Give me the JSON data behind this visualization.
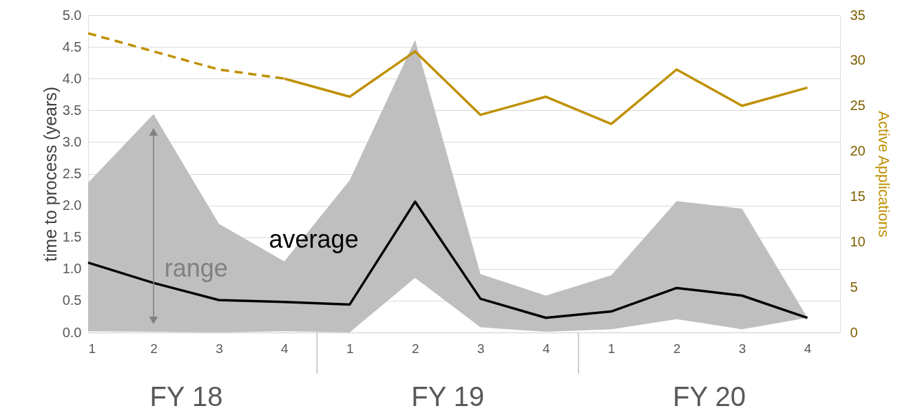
{
  "chart_data": {
    "type": "line",
    "ylabel": "time to process (years)",
    "y2label": "Active Applications",
    "grid": "y",
    "categories": [
      "1",
      "2",
      "3",
      "4",
      "1",
      "2",
      "3",
      "4",
      "1",
      "2",
      "3",
      "4"
    ],
    "ylim": [
      0,
      5
    ],
    "yticks": [
      {
        "value": 0,
        "label": "0.0"
      },
      {
        "value": 0.5,
        "label": "0.5"
      },
      {
        "value": 1,
        "label": "1.0"
      },
      {
        "value": 1.5,
        "label": "1.5"
      },
      {
        "value": 2,
        "label": "2.0"
      },
      {
        "value": 2.5,
        "label": "2.5"
      },
      {
        "value": 3,
        "label": "3.0"
      },
      {
        "value": 3.5,
        "label": "3.5"
      },
      {
        "value": 4,
        "label": "4.0"
      },
      {
        "value": 4.5,
        "label": "4.5"
      },
      {
        "value": 5,
        "label": "5.0"
      }
    ],
    "y2lim": [
      0,
      35
    ],
    "y2ticks": [
      0,
      5,
      10,
      15,
      20,
      25,
      30,
      35
    ],
    "series": [
      {
        "color": "#000000",
        "values": [
          1.1,
          0.78,
          0.51,
          0.48,
          0.44,
          2.06,
          0.53,
          0.23,
          0.33,
          0.7,
          0.58,
          0.23
        ],
        "lower": [
          0.02,
          0.01,
          0.0,
          0.02,
          0.0,
          0.86,
          0.08,
          0.01,
          0.05,
          0.21,
          0.05,
          0.23
        ],
        "upper": [
          2.36,
          3.44,
          1.71,
          1.12,
          2.4,
          4.61,
          0.92,
          0.58,
          0.9,
          2.07,
          1.95,
          0.23
        ]
      },
      {
        "color": "#bf9000",
        "axis": "y2",
        "line_style": "dashed",
        "values": [
          33,
          31,
          29,
          28,
          null,
          null,
          null,
          null,
          null,
          null,
          null,
          null
        ]
      },
      {
        "color": "#bf9000",
        "axis": "y2",
        "line_style": "solid",
        "values": [
          null,
          null,
          null,
          28,
          26,
          31,
          24,
          26,
          23,
          29,
          25,
          27
        ]
      }
    ],
    "annotations": [
      "average",
      "range",
      "FY 18",
      "FY 19",
      "FY 20"
    ]
  }
}
